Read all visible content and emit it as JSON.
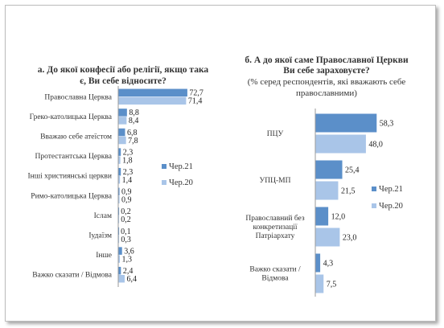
{
  "chart_data": [
    {
      "type": "bar",
      "orientation": "horizontal",
      "title": "а. До якої конфесії або релігії, якщо така є, Ви себе відносите?",
      "categories": [
        "Православна Церква",
        "Греко-католицька Церква",
        "Вважаю себе атеїстом",
        "Протестантська Церква",
        "Інші християнські церкви",
        "Римо-католицька Церква",
        "Іслам",
        "Іудаїзм",
        "Інше",
        "Важко сказати / Відмова"
      ],
      "series": [
        {
          "name": "Чер.21",
          "color": "#5b8fc9",
          "values": [
            72.7,
            8.8,
            6.8,
            2.3,
            2.3,
            0.9,
            0.2,
            0.1,
            3.6,
            2.4
          ]
        },
        {
          "name": "Чер.20",
          "color": "#a9c5e8",
          "values": [
            71.4,
            8.4,
            7.8,
            1.8,
            1.4,
            0.9,
            0.2,
            0.3,
            1.3,
            6.4
          ]
        }
      ],
      "legend": "right"
    },
    {
      "type": "bar",
      "orientation": "horizontal",
      "title": "б. А до якої саме Православної Церкви Ви себе зараховуєте?",
      "subtitle": "(% серед респондентів, які вважають себе православними)",
      "categories": [
        "ПЦУ",
        "УПЦ-МП",
        "Православний без конкретизації Патріархату",
        "Важко сказати / Відмова"
      ],
      "series": [
        {
          "name": "Чер.21",
          "color": "#5b8fc9",
          "values": [
            58.3,
            25.4,
            12.0,
            4.3
          ]
        },
        {
          "name": "Чер.20",
          "color": "#a9c5e8",
          "values": [
            48.0,
            21.5,
            23.0,
            7.5
          ]
        }
      ],
      "legend": "right"
    }
  ]
}
